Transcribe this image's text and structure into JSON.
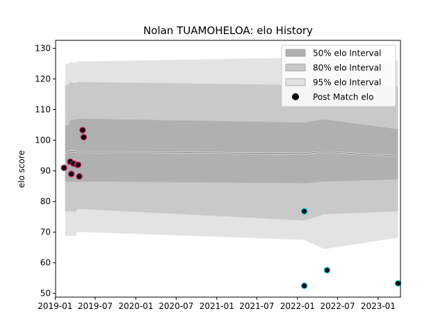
{
  "chart_data": {
    "type": "line",
    "title": "Nolan TUAMOHELOA: elo History",
    "xlabel": "",
    "ylabel": "elo score",
    "xlim": [
      "2019-01-03",
      "2023-04-12"
    ],
    "ylim": [
      48.8,
      132.6
    ],
    "grid": false,
    "legend_position": "top-right",
    "x_ticks": [
      "2019-01",
      "2019-07",
      "2020-01",
      "2020-07",
      "2021-01",
      "2021-07",
      "2022-01",
      "2022-07",
      "2023-01"
    ],
    "x_tick_dates": [
      "2019-01-01",
      "2019-07-01",
      "2020-01-01",
      "2020-07-01",
      "2021-01-01",
      "2021-07-01",
      "2022-01-01",
      "2022-07-01",
      "2023-01-01"
    ],
    "y_ticks": [
      50,
      60,
      70,
      80,
      90,
      100,
      110,
      120,
      130
    ],
    "legend": [
      {
        "label": "50% elo Interval",
        "color": "#b0b0b0"
      },
      {
        "label": "80% elo Interval",
        "color": "#c9c9c9"
      },
      {
        "label": "95% elo Interval",
        "color": "#e3e3e3"
      },
      {
        "label": "Post Match elo",
        "color": "#000000"
      }
    ],
    "mean_line": {
      "x": [
        "2019-02-15",
        "2019-03-01",
        "2019-03-10",
        "2019-04-05",
        "2019-04-15",
        "2019-05-10",
        "2022-02-01",
        "2022-05-01",
        "2023-04-01"
      ],
      "y": [
        95.8,
        95.8,
        96.4,
        96.4,
        96.2,
        96.2,
        95.6,
        96.2,
        94.8
      ]
    },
    "bands": [
      {
        "name": "95% elo Interval",
        "color": "#e3e3e3",
        "x": [
          "2019-02-15",
          "2019-03-01",
          "2019-03-10",
          "2019-04-05",
          "2019-04-10",
          "2019-05-10",
          "2022-02-01",
          "2022-05-01",
          "2023-04-01"
        ],
        "upper": [
          125.0,
          125.0,
          125.5,
          125.3,
          125.7,
          125.7,
          127.0,
          127.0,
          126.0
        ],
        "lower": [
          68.8,
          68.8,
          68.8,
          68.8,
          70.0,
          70.0,
          67.5,
          64.5,
          68.2
        ]
      },
      {
        "name": "80% elo Interval",
        "color": "#c9c9c9",
        "x": [
          "2019-02-15",
          "2019-03-01",
          "2019-03-10",
          "2019-04-05",
          "2019-04-10",
          "2019-05-10",
          "2022-02-01",
          "2022-05-01",
          "2023-04-01"
        ],
        "upper": [
          118.0,
          118.0,
          119.0,
          118.6,
          119.0,
          119.0,
          118.0,
          118.3,
          117.5
        ],
        "lower": [
          76.8,
          76.8,
          76.8,
          76.8,
          77.5,
          77.5,
          73.8,
          75.8,
          76.8
        ]
      },
      {
        "name": "50% elo Interval",
        "color": "#b0b0b0",
        "x": [
          "2019-02-15",
          "2019-03-01",
          "2019-03-10",
          "2019-04-05",
          "2019-04-10",
          "2019-05-10",
          "2022-02-01",
          "2022-05-01",
          "2023-04-01"
        ],
        "upper": [
          104.8,
          104.8,
          106.7,
          106.7,
          107.0,
          107.0,
          105.8,
          106.8,
          103.6
        ],
        "lower": [
          86.5,
          86.5,
          86.5,
          86.5,
          86.5,
          86.5,
          86.0,
          86.5,
          87.2
        ]
      }
    ],
    "series": [
      {
        "name": "Post Match elo",
        "x": [
          "2019-02-10",
          "2019-03-10",
          "2019-03-15",
          "2019-03-25",
          "2019-04-10",
          "2019-04-15",
          "2019-04-20",
          "2019-05-05",
          "2019-05-10",
          "2022-02-01",
          "2022-02-01",
          "2022-05-15",
          "2023-04-01"
        ],
        "y": [
          91.0,
          93.0,
          89.0,
          92.4,
          92.0,
          92.0,
          88.2,
          103.3,
          101.0,
          76.8,
          52.5,
          57.6,
          53.3
        ],
        "fill_colors": [
          "#000000",
          "#000000",
          "#000000",
          "#000000",
          "#000000",
          "#000000",
          "#000000",
          "#000000",
          "#000000",
          "#000000",
          "#000000",
          "#000000",
          "#000000"
        ],
        "edge_colors": [
          "#c2185b",
          "#c2185b",
          "#c2185b",
          "#c2185b",
          "#c2185b",
          "#c2185b",
          "#c2185b",
          "#c2185b",
          "#c2185b",
          "#00bcd4",
          "#00bcd4",
          "#00bcd4",
          "#00bcd4"
        ]
      }
    ]
  }
}
